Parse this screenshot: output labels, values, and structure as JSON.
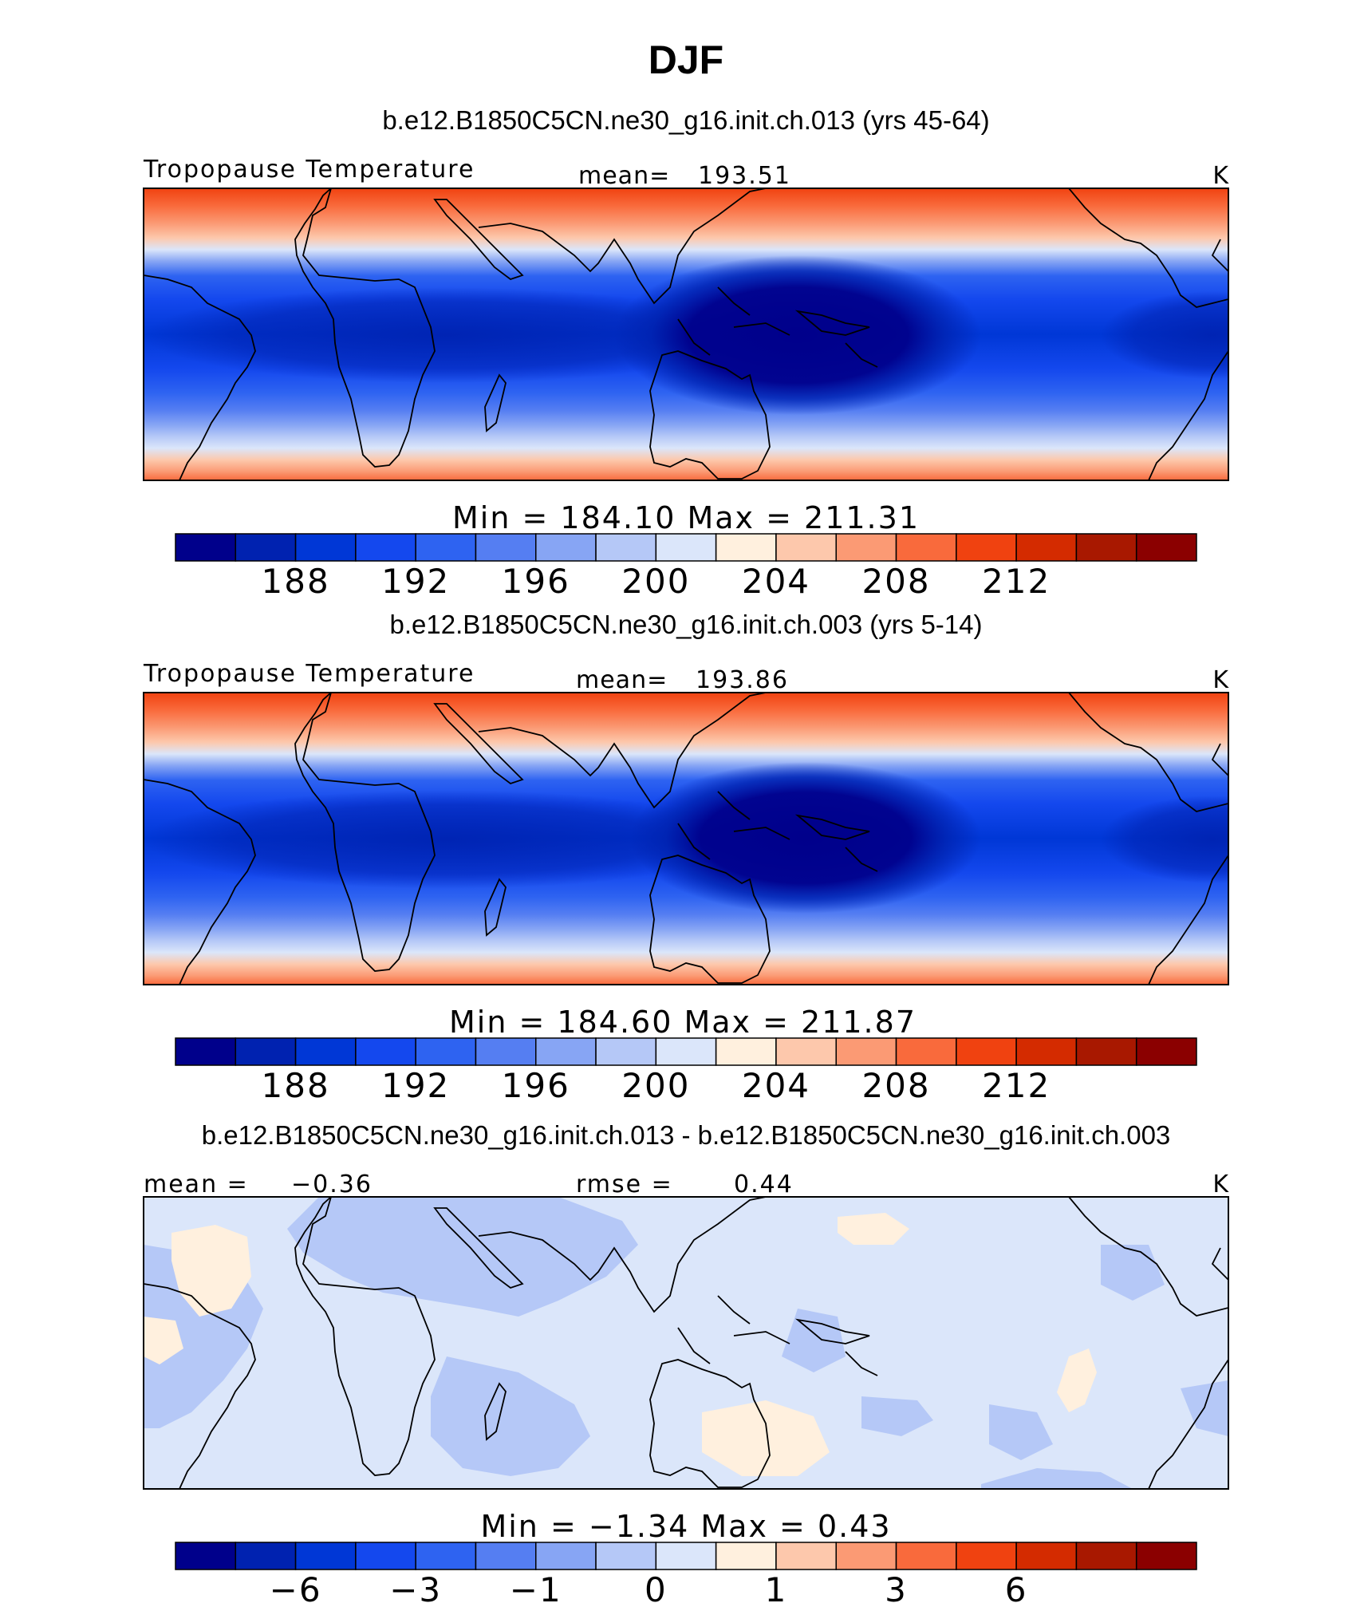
{
  "figure": {
    "title": "DJF"
  },
  "palette": [
    "#00008b",
    "#0022b0",
    "#0037d6",
    "#1448ee",
    "#2e63f1",
    "#557ef2",
    "#87a5f4",
    "#b5c8f7",
    "#dbe6fa",
    "#fff0de",
    "#fdc8ac",
    "#fb9a74",
    "#f96a3c",
    "#f04210",
    "#d42b00",
    "#a81800",
    "#8b0000"
  ],
  "chart_data": [
    {
      "type": "heatmap",
      "case_title": "b.e12.B1850C5CN.ne30_g16.init.ch.013 (yrs 45-64)",
      "variable": "Tropopause Temperature",
      "mean_label": "mean=",
      "mean_value": "193.51",
      "units": "K",
      "stats_text": "Min = 184.10 Max = 211.31",
      "min": 184.1,
      "max": 211.31,
      "mean": 193.51,
      "colorbar_ticks": [
        "188",
        "192",
        "196",
        "200",
        "204",
        "208",
        "212"
      ],
      "colorbar_tick_bins": [
        1,
        3,
        5,
        7,
        9,
        11,
        13
      ],
      "field": {
        "pole_value": 208,
        "equator_value": 186,
        "minimum_near": "western Pacific",
        "minimum_value": 184.1,
        "maximum_value": 211.31
      }
    },
    {
      "type": "heatmap",
      "case_title": "b.e12.B1850C5CN.ne30_g16.init.ch.003 (yrs 5-14)",
      "variable": "Tropopause Temperature",
      "mean_label": "mean=",
      "mean_value": "193.86",
      "units": "K",
      "stats_text": "Min = 184.60 Max = 211.87",
      "min": 184.6,
      "max": 211.87,
      "mean": 193.86,
      "colorbar_ticks": [
        "188",
        "192",
        "196",
        "200",
        "204",
        "208",
        "212"
      ],
      "colorbar_tick_bins": [
        1,
        3,
        5,
        7,
        9,
        11,
        13
      ],
      "field": {
        "pole_value": 208,
        "equator_value": 186,
        "minimum_near": "western Pacific",
        "minimum_value": 184.6,
        "maximum_value": 211.87
      }
    },
    {
      "type": "heatmap",
      "case_title": "b.e12.B1850C5CN.ne30_g16.init.ch.013 - b.e12.B1850C5CN.ne30_g16.init.ch.003",
      "variable": "",
      "mean_label": "mean =",
      "mean_value": "−0.36",
      "rmse_label": "rmse =",
      "rmse_value": "0.44",
      "units": "K",
      "stats_text": "Min = −1.34 Max = 0.43",
      "min": -1.34,
      "max": 0.43,
      "mean": -0.36,
      "rmse": 0.44,
      "colorbar_ticks": [
        "−6",
        "−3",
        "−1",
        "0",
        "1",
        "3",
        "6"
      ],
      "colorbar_tick_bins": [
        1,
        3,
        5,
        7,
        9,
        11,
        13
      ]
    }
  ]
}
